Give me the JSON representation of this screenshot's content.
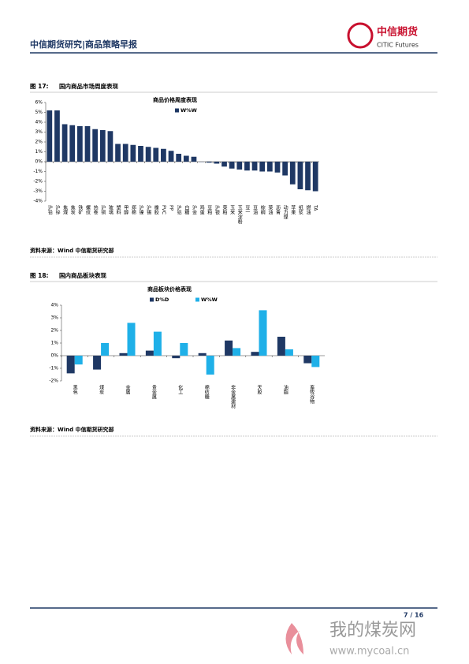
{
  "header": {
    "title": "中信期货研究|商品策略早报",
    "logo_cn": "中信期货",
    "logo_en": "CITIC Futures"
  },
  "figures": [
    {
      "label": "图 17:",
      "caption": "国内商品市场周度表现",
      "source": "资料来源：Wind 中信期货研究部"
    },
    {
      "label": "图 18:",
      "caption": "国内商品板块表现",
      "source": "资料来源：Wind 中信期货研究部"
    }
  ],
  "chart_data": [
    {
      "type": "bar",
      "title": "商品价格周度表现",
      "categories": [
        "沪铅",
        "沪锌",
        "焦煤",
        "焦炭",
        "铁矿",
        "螺纹",
        "热卷",
        "沪铜",
        "玻璃",
        "塑料",
        "甲醇",
        "郑棉",
        "沪镍",
        "沪锡",
        "橡胶",
        "PVC",
        "PP",
        "沪铝",
        "白糖",
        "沪金",
        "鸡蛋",
        "豆粕",
        "沪银",
        "菜粕",
        "玉米",
        "玉米淀粉",
        "豆一",
        "豆油",
        "棕榈",
        "菜油",
        "沥青",
        "动力煤",
        "苹果",
        "纸浆",
        "燃油",
        "TA"
      ],
      "series": [
        {
          "name": "W%W",
          "color": "#1f3864",
          "values": [
            5.2,
            5.2,
            3.8,
            3.7,
            3.6,
            3.6,
            3.3,
            3.2,
            3.1,
            1.8,
            1.8,
            1.7,
            1.6,
            1.5,
            1.4,
            1.3,
            1.1,
            0.8,
            0.6,
            0.5,
            0.0,
            -0.1,
            -0.2,
            -0.5,
            -0.7,
            -0.8,
            -0.9,
            -0.9,
            -1.0,
            -1.0,
            -1.1,
            -1.4,
            -2.3,
            -2.8,
            -2.9,
            -3.0
          ]
        }
      ],
      "ylim": [
        -4,
        6
      ],
      "yticks": [
        {
          "value": -4,
          "label": "-4%"
        },
        {
          "value": -3,
          "label": "-3%"
        },
        {
          "value": -2,
          "label": "-2%"
        },
        {
          "value": -1,
          "label": "-1%"
        },
        {
          "value": 0,
          "label": "0%"
        },
        {
          "value": 1,
          "label": "1%"
        },
        {
          "value": 2,
          "label": "2%"
        },
        {
          "value": 3,
          "label": "3%"
        },
        {
          "value": 4,
          "label": "4%"
        },
        {
          "value": 5,
          "label": "5%"
        },
        {
          "value": 6,
          "label": "6%"
        }
      ]
    },
    {
      "type": "bar",
      "title": "商品板块价格表现",
      "categories": [
        "黑色",
        "煤炭",
        "金属",
        "贵金属",
        "化工",
        "棉纺糖",
        "非金属建材",
        "天胶",
        "油脂",
        "畜牧谷物"
      ],
      "series": [
        {
          "name": "D%D",
          "color": "#1f3864",
          "values": [
            -1.4,
            -1.1,
            0.2,
            0.4,
            -0.2,
            0.2,
            1.2,
            0.3,
            1.5,
            -0.6
          ]
        },
        {
          "name": "W%W",
          "color": "#1fb0e8",
          "values": [
            -0.7,
            1.0,
            2.6,
            1.9,
            1.0,
            -1.5,
            0.6,
            3.6,
            0.5,
            -0.9
          ]
        }
      ],
      "ylim": [
        -2,
        4
      ],
      "yticks": [
        {
          "value": -2,
          "label": "-2%"
        },
        {
          "value": -1,
          "label": "-1%"
        },
        {
          "value": 0,
          "label": "0%"
        },
        {
          "value": 1,
          "label": "1%"
        },
        {
          "value": 2,
          "label": "2%"
        },
        {
          "value": 3,
          "label": "3%"
        },
        {
          "value": 4,
          "label": "4%"
        }
      ]
    }
  ],
  "footer": {
    "page": "7 / 16",
    "watermark_cn": "我的煤炭网",
    "watermark_url": "www.mycoal.cn"
  }
}
